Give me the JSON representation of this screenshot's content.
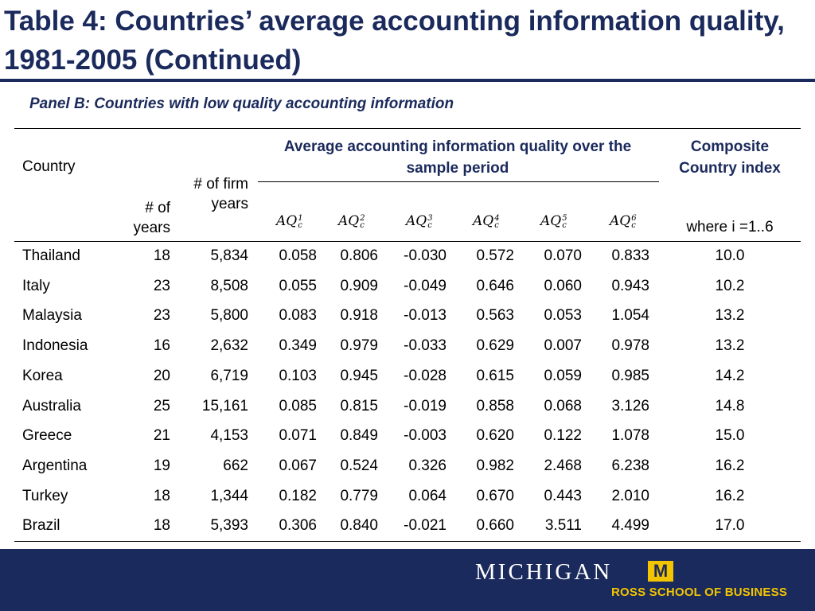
{
  "title": "Table 4: Countries’ average accounting information quality, 1981-2005 (Continued)",
  "subtitle": "Panel B: Countries with low quality accounting information",
  "headers": {
    "country": "Country",
    "years": "# of years",
    "firm_years": "# of firm years",
    "avg_group": "Average accounting information quality over the sample period",
    "composite": "Composite Country index",
    "composite_note": "where i =1..6",
    "aq_measures": [
      {
        "base": "AQ",
        "sup": "1",
        "sub": "c"
      },
      {
        "base": "AQ",
        "sup": "2",
        "sub": "c"
      },
      {
        "base": "AQ",
        "sup": "3",
        "sub": "c"
      },
      {
        "base": "AQ",
        "sup": "4",
        "sub": "c"
      },
      {
        "base": "AQ",
        "sup": "5",
        "sub": "c"
      },
      {
        "base": "AQ",
        "sup": "6",
        "sub": "c"
      }
    ]
  },
  "rows": [
    {
      "country": "Thailand",
      "years": "18",
      "firm_years": "5,834",
      "aq": [
        "0.058",
        "0.806",
        "-0.030",
        "0.572",
        "0.070",
        "0.833"
      ],
      "composite": "10.0"
    },
    {
      "country": "Italy",
      "years": "23",
      "firm_years": "8,508",
      "aq": [
        "0.055",
        "0.909",
        "-0.049",
        "0.646",
        "0.060",
        "0.943"
      ],
      "composite": "10.2"
    },
    {
      "country": "Malaysia",
      "years": "23",
      "firm_years": "5,800",
      "aq": [
        "0.083",
        "0.918",
        "-0.013",
        "0.563",
        "0.053",
        "1.054"
      ],
      "composite": "13.2"
    },
    {
      "country": "Indonesia",
      "years": "16",
      "firm_years": "2,632",
      "aq": [
        "0.349",
        "0.979",
        "-0.033",
        "0.629",
        "0.007",
        "0.978"
      ],
      "composite": "13.2"
    },
    {
      "country": "Korea",
      "years": "20",
      "firm_years": "6,719",
      "aq": [
        "0.103",
        "0.945",
        "-0.028",
        "0.615",
        "0.059",
        "0.985"
      ],
      "composite": "14.2"
    },
    {
      "country": "Australia",
      "years": "25",
      "firm_years": "15,161",
      "aq": [
        "0.085",
        "0.815",
        "-0.019",
        "0.858",
        "0.068",
        "3.126"
      ],
      "composite": "14.8"
    },
    {
      "country": "Greece",
      "years": "21",
      "firm_years": "4,153",
      "aq": [
        "0.071",
        "0.849",
        "-0.003",
        "0.620",
        "0.122",
        "1.078"
      ],
      "composite": "15.0"
    },
    {
      "country": "Argentina",
      "years": "19",
      "firm_years": "662",
      "aq": [
        "0.067",
        "0.524",
        "0.326",
        "0.982",
        "2.468",
        "6.238"
      ],
      "composite": "16.2"
    },
    {
      "country": "Turkey",
      "years": "18",
      "firm_years": "1,344",
      "aq": [
        "0.182",
        "0.779",
        "0.064",
        "0.670",
        "0.443",
        "2.010"
      ],
      "composite": "16.2"
    },
    {
      "country": "Brazil",
      "years": "18",
      "firm_years": "5,393",
      "aq": [
        "0.306",
        "0.840",
        "-0.021",
        "0.660",
        "3.511",
        "4.499"
      ],
      "composite": "17.0"
    }
  ],
  "footer": {
    "logo_word": "MICHIGAN",
    "logo_block": "M",
    "school": "ROSS SCHOOL OF BUSINESS"
  },
  "colors": {
    "navy": "#1b2a5c",
    "maize": "#f2c500"
  }
}
